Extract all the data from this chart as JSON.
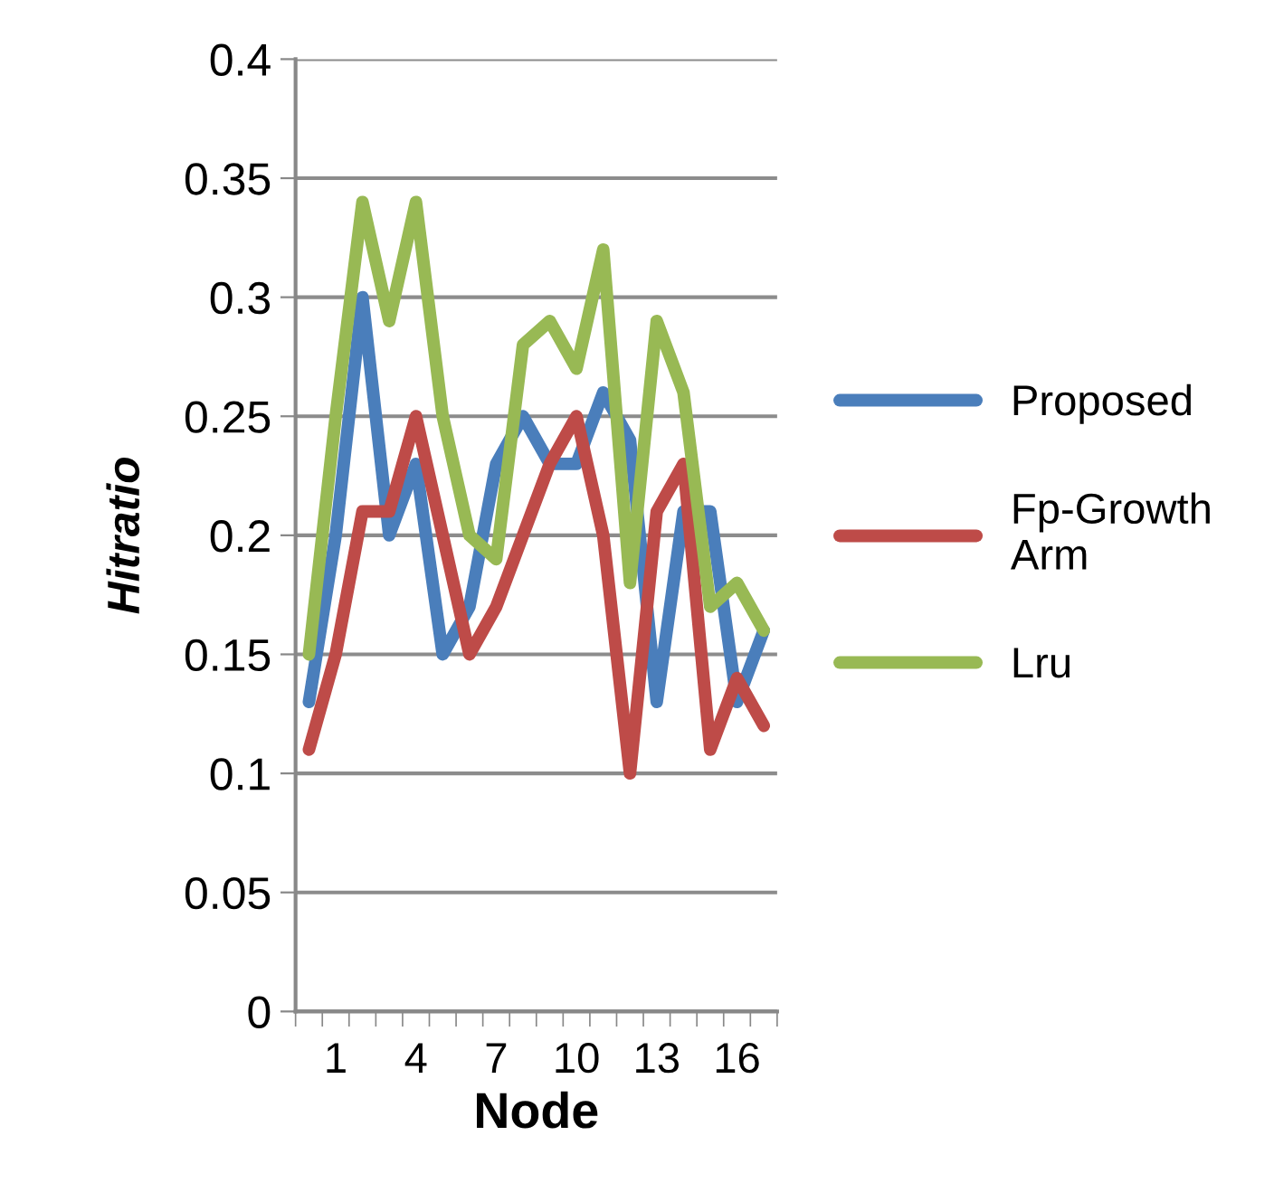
{
  "chart_data": {
    "type": "line",
    "xlabel": "Node",
    "ylabel": "Hitratio",
    "categories": [
      null,
      "1",
      null,
      null,
      "4",
      null,
      null,
      "7",
      null,
      null,
      "10",
      null,
      null,
      "13",
      null,
      null,
      "16",
      null
    ],
    "series": [
      {
        "name": "Proposed",
        "color": "#4a7ebb",
        "values": [
          0.13,
          0.2,
          0.3,
          0.2,
          0.23,
          0.15,
          0.17,
          0.23,
          0.25,
          0.23,
          0.23,
          0.26,
          0.24,
          0.13,
          0.21,
          0.21,
          0.13,
          0.16
        ]
      },
      {
        "name": "Fp-Growth\nArm",
        "color": "#be4b48",
        "values": [
          0.11,
          0.15,
          0.21,
          0.21,
          0.25,
          0.2,
          0.15,
          0.17,
          0.2,
          0.23,
          0.25,
          0.2,
          0.1,
          0.21,
          0.23,
          0.11,
          0.14,
          0.12
        ]
      },
      {
        "name": "Lru",
        "color": "#98b954",
        "values": [
          0.15,
          0.25,
          0.34,
          0.29,
          0.34,
          0.25,
          0.2,
          0.19,
          0.28,
          0.29,
          0.27,
          0.32,
          0.18,
          0.29,
          0.26,
          0.17,
          0.18,
          0.16
        ]
      }
    ],
    "ylim": [
      0,
      0.4
    ],
    "yticks": [
      0,
      0.05,
      0.1,
      0.15,
      0.2,
      0.25,
      0.3,
      0.35,
      0.4
    ],
    "grid": "y",
    "legend": "right",
    "marker": "none",
    "line_style": "solid"
  }
}
